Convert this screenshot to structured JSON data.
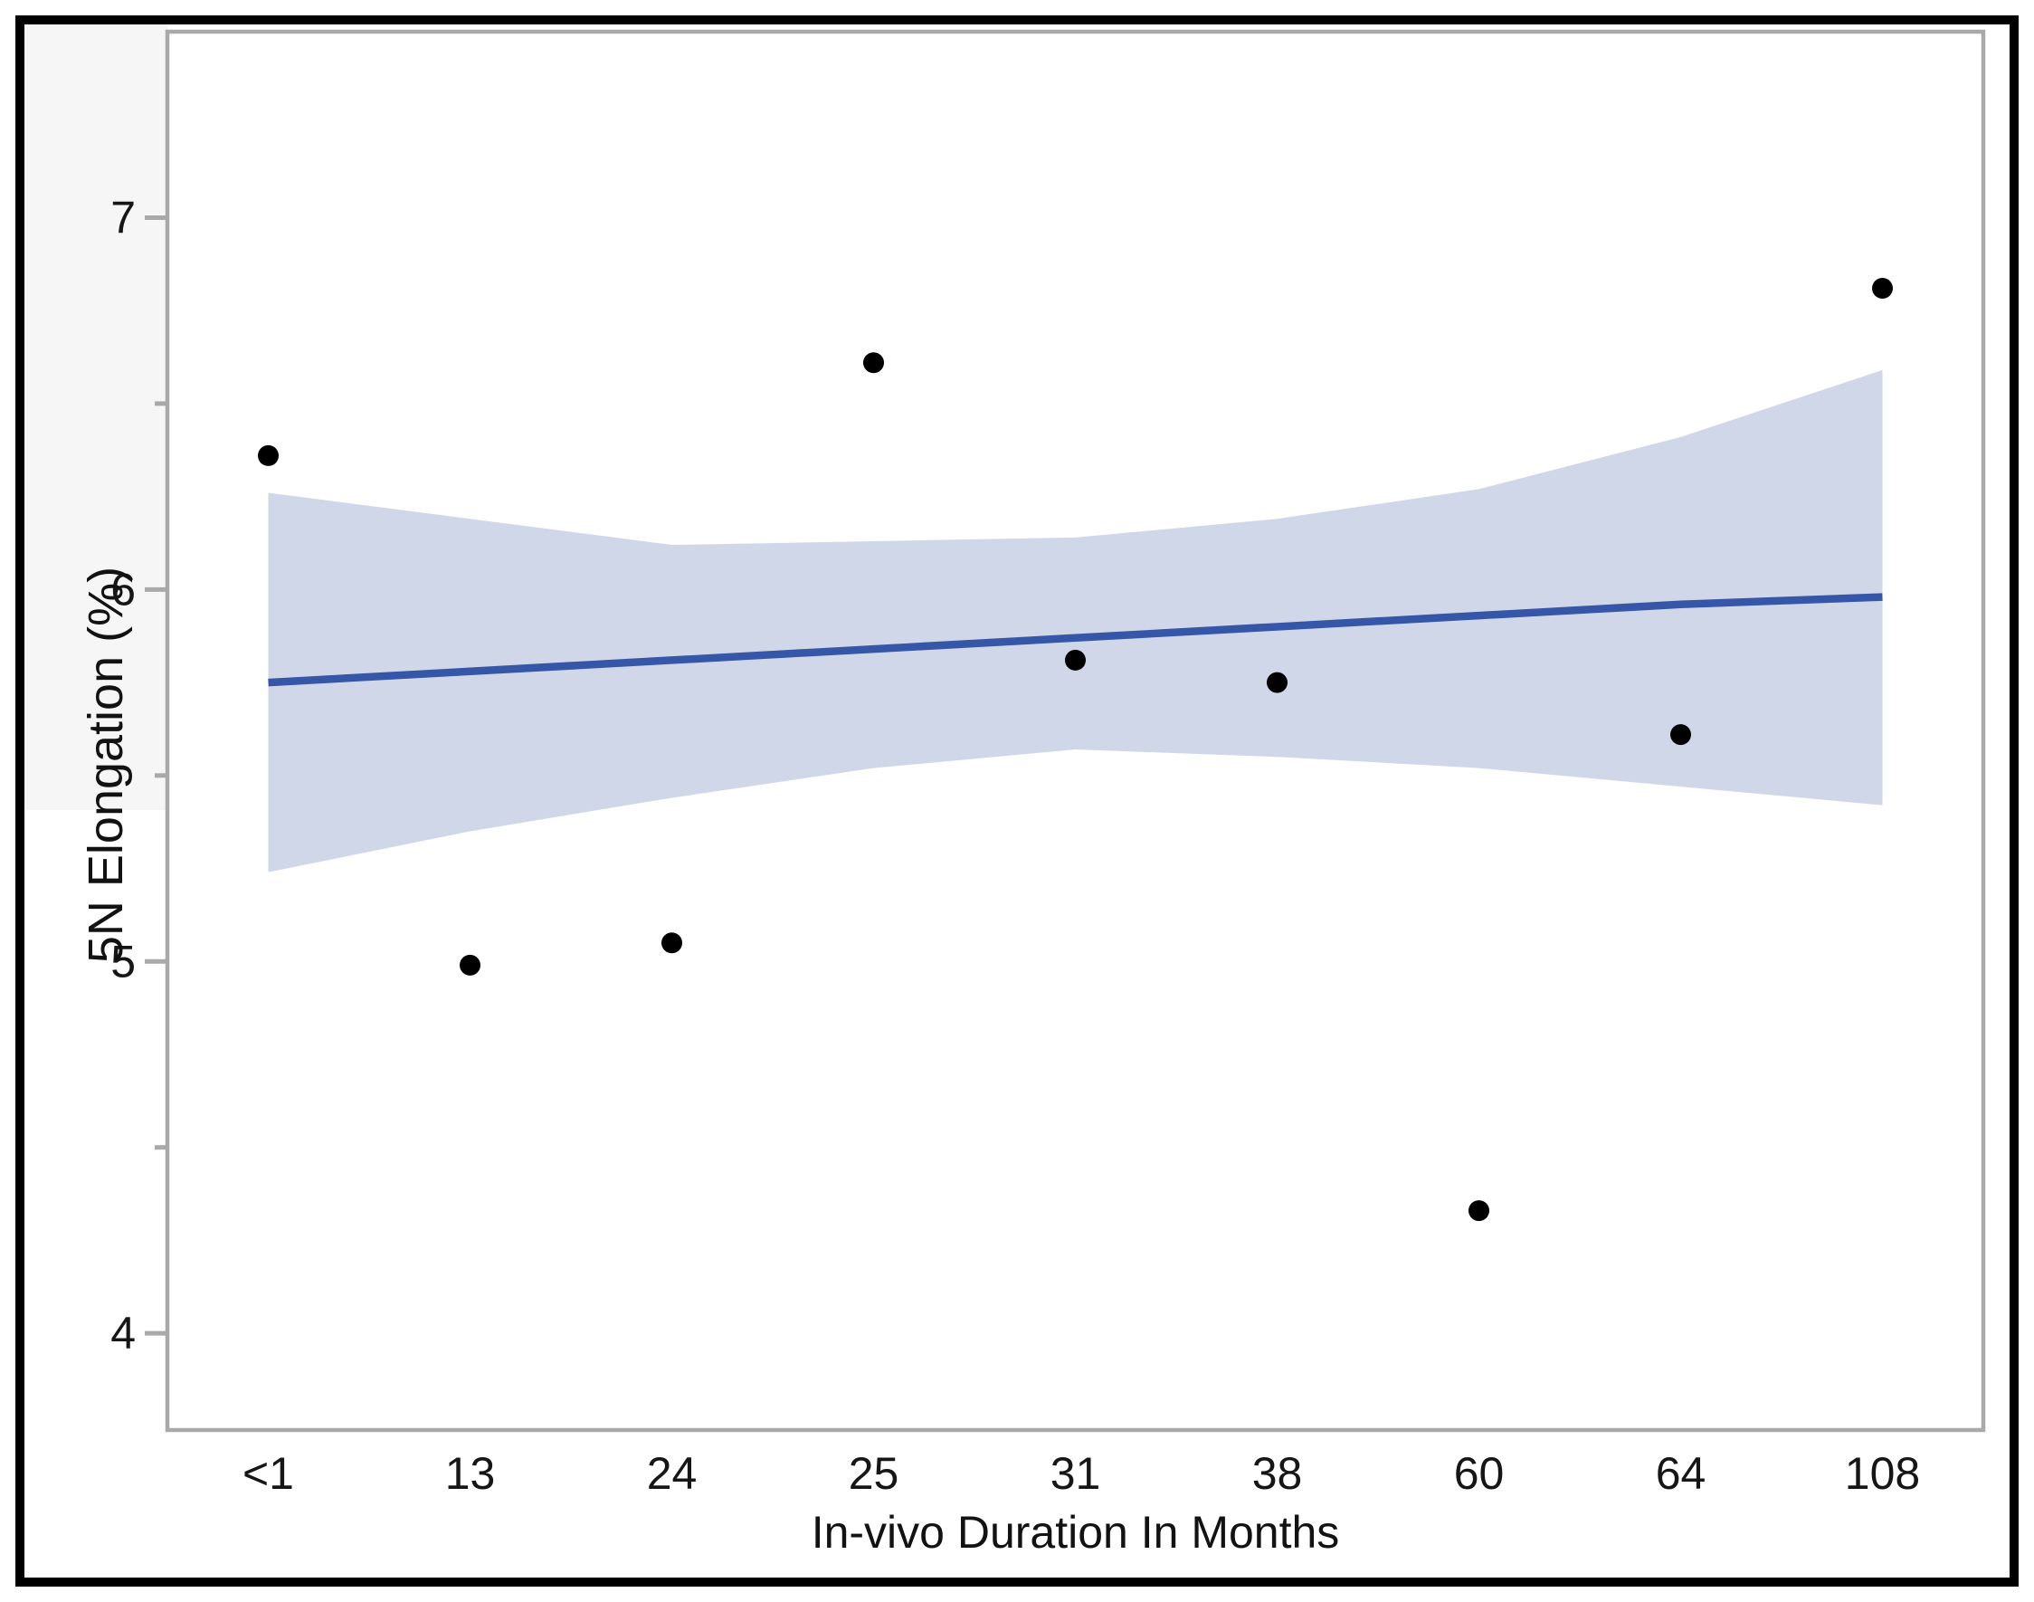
{
  "figure": {
    "x_axis_title": "In-vivo Duration In Months",
    "y_axis_title": "5N Elongation (%)"
  },
  "chart_data": {
    "type": "scatter",
    "title": "",
    "xlabel": "In-vivo Duration In Months",
    "ylabel": "5N Elongation (%)",
    "categories": [
      "<1",
      "13",
      "24",
      "25",
      "31",
      "38",
      "60",
      "64",
      "108"
    ],
    "values": [
      6.36,
      4.99,
      5.05,
      6.61,
      5.81,
      5.75,
      4.33,
      5.61,
      6.81
    ],
    "fit_line_values": [
      5.75,
      5.78,
      5.81,
      5.84,
      5.87,
      5.9,
      5.93,
      5.96,
      5.98
    ],
    "ci_upper": [
      6.26,
      6.19,
      6.12,
      6.13,
      6.14,
      6.19,
      6.27,
      6.41,
      6.59
    ],
    "ci_lower": [
      5.24,
      5.35,
      5.44,
      5.52,
      5.57,
      5.55,
      5.52,
      5.47,
      5.42
    ],
    "y_ticks_major": [
      7,
      6,
      5,
      4
    ],
    "y_ticks_minor": [
      6.5,
      5.5,
      4.5
    ],
    "ylim": [
      3.74,
      7.5
    ],
    "grid": "off",
    "legend": "none",
    "colors": {
      "point": "#000000",
      "fit_line": "#3656a8",
      "ci_band": "#cfd7e9",
      "frame": "#a9a9a9",
      "tick_label": "#161616",
      "panel_strip": "#f6f6f7",
      "outer_border": "#000000"
    }
  }
}
